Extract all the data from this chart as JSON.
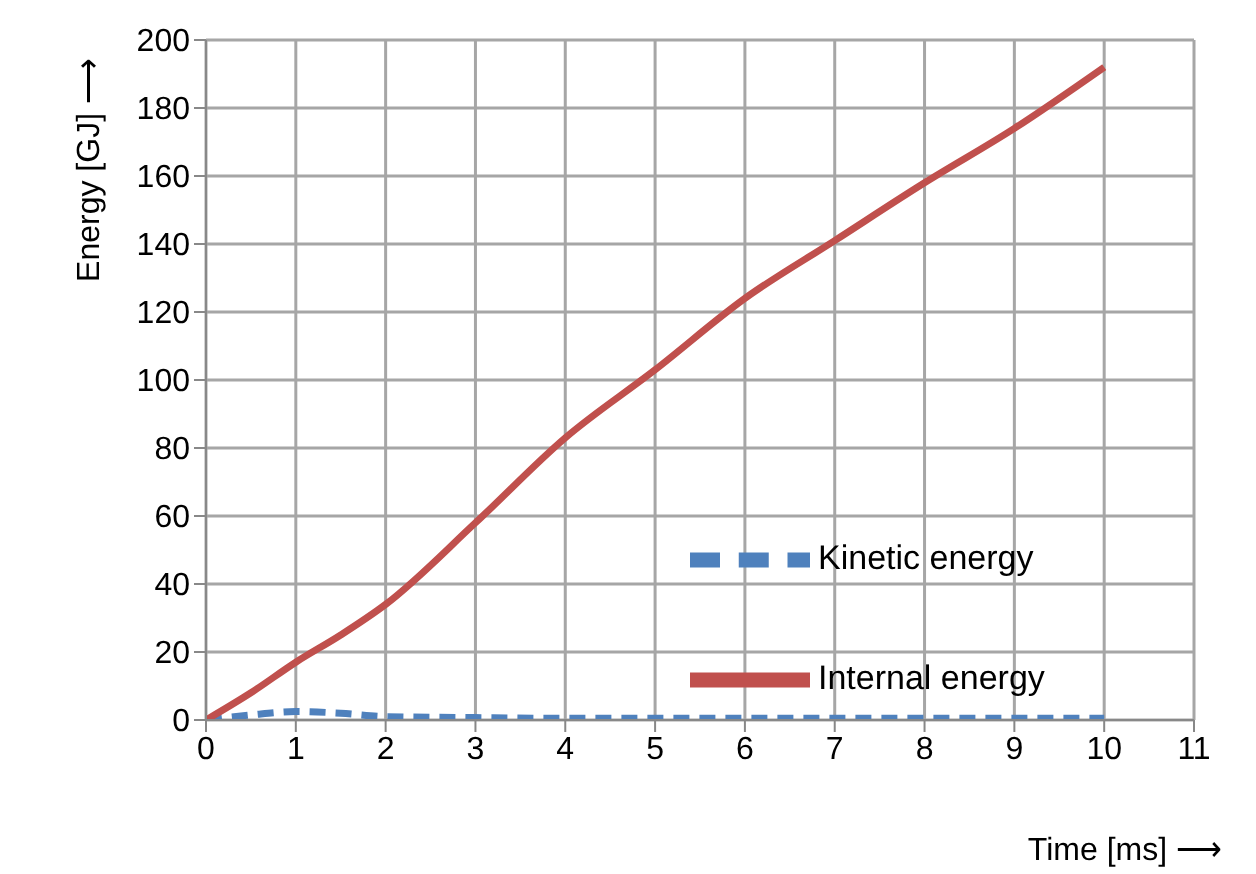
{
  "chart_data": {
    "type": "line",
    "xlabel": "Time [ms] ⟶",
    "ylabel": "Energy [GJ] ⟶",
    "x": [
      0,
      0.5,
      1,
      1.5,
      2,
      3,
      4,
      5,
      6,
      7,
      8,
      9,
      10
    ],
    "series": [
      {
        "name": "Kinetic energy",
        "color": "#4f81bd",
        "line_style": "dashed",
        "values": [
          0,
          1.5,
          2.5,
          2,
          1,
          0.7,
          0.5,
          0.5,
          0.5,
          0.5,
          0.5,
          0.5,
          0.5
        ]
      },
      {
        "name": "Internal energy",
        "color": "#c0504d",
        "line_style": "solid",
        "values": [
          0,
          8,
          17,
          25,
          34,
          58,
          83,
          103,
          124,
          141,
          158,
          174,
          192
        ]
      }
    ],
    "xlim": [
      0,
      11
    ],
    "xticks": [
      0,
      1,
      2,
      3,
      4,
      5,
      6,
      7,
      8,
      9,
      10,
      11
    ],
    "ylim": [
      0,
      200
    ],
    "yticks": [
      0,
      20,
      40,
      60,
      80,
      100,
      120,
      140,
      160,
      180,
      200
    ],
    "grid": true,
    "legend": "right",
    "marker": "none"
  }
}
